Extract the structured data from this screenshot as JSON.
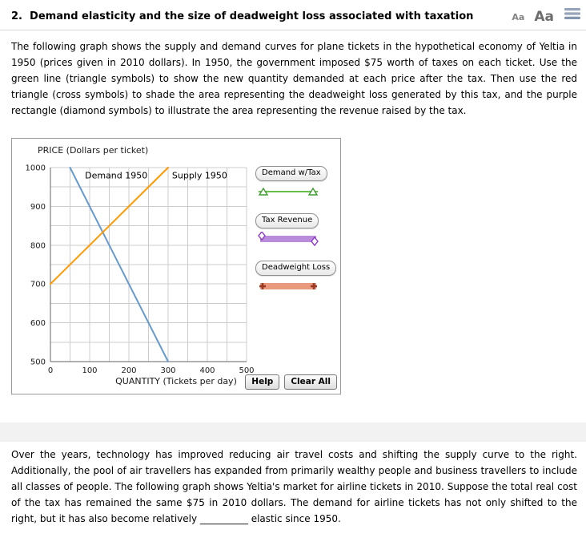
{
  "header": {
    "title": "2.  Demand elasticity and the size of deadweight loss associated with taxation",
    "font_controls": {
      "small": "Aa",
      "large": "Aa"
    }
  },
  "intro_paragraph": "The following graph shows the supply and demand curves for plane tickets in the hypothetical economy of Yeltia in 1950 (prices given in 2010 dollars). In 1950, the government imposed $75 worth of taxes on each ticket. Use the green line (triangle symbols) to show the new quantity demanded at each price after the tax. Then use the red triangle (cross symbols) to shade the area representing the deadweight loss generated by this tax, and the purple rectangle (diamond symbols) to illustrate the area representing the revenue raised by the tax.",
  "graph": {
    "legend": [
      {
        "label": "Demand w/Tax",
        "symbol": "triangle",
        "line_color": "#6abf4b",
        "marker_color": "#3f9b32"
      },
      {
        "label": "Tax Revenue",
        "symbol": "diamond",
        "line_color": "#b98cdb",
        "marker_color": "#8c35c9"
      },
      {
        "label": "Deadweight Loss",
        "symbol": "cross",
        "line_color": "#e9997d",
        "marker_color": "#9b3a22"
      }
    ],
    "buttons": {
      "help": "Help",
      "clear_all": "Clear All"
    }
  },
  "chart_data": {
    "type": "line",
    "title": "",
    "xlabel": "QUANTITY (Tickets per day)",
    "ylabel": "PRICE (Dollars per ticket)",
    "xlim": [
      0,
      500
    ],
    "ylim": [
      500,
      1000
    ],
    "x_ticks": [
      0,
      100,
      200,
      300,
      400,
      500
    ],
    "y_ticks": [
      500,
      600,
      700,
      800,
      900,
      1000
    ],
    "grid": true,
    "grid_step": [
      50,
      50
    ],
    "legend_position": "right",
    "series": [
      {
        "name": "Demand 1950",
        "color": "#6699cc",
        "points": [
          [
            50,
            1000
          ],
          [
            300,
            500
          ]
        ],
        "label_at": [
          88,
          972
        ]
      },
      {
        "name": "Supply 1950",
        "color": "#ff9900",
        "points": [
          [
            0,
            700
          ],
          [
            300,
            1000
          ]
        ],
        "label_at": [
          310,
          972
        ]
      }
    ]
  },
  "followup_paragraph": "Over the years, technology has improved reducing air travel costs and shifting the supply curve to the right. Additionally, the pool of air travellers has expanded from primarily wealthy people and business travellers to include all classes of people. The following graph shows Yeltia's market for airline tickets in 2010. Suppose the total real cost of the tax has remained the same $75 in 2010 dollars. The demand for airline tickets has not only shifted to the right, but it has also become relatively __________ elastic since 1950."
}
